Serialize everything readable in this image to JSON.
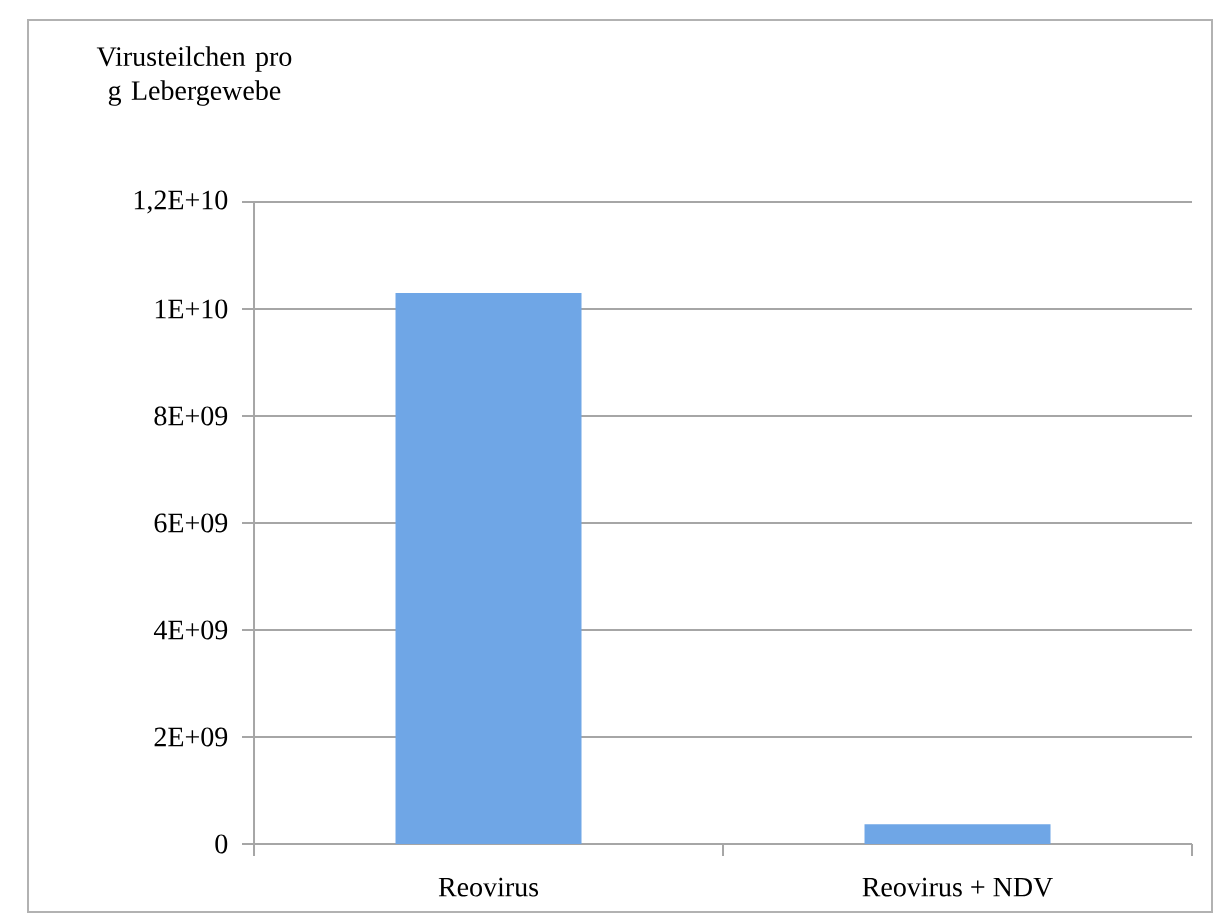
{
  "chart_data": {
    "type": "bar",
    "ylabel": "Virusteilchen pro g Lebergewebe",
    "categories": [
      "Reovirus",
      "Reovirus + NDV"
    ],
    "values": [
      10300000000.0,
      370000000.0
    ],
    "color": "#6fa6e6",
    "ylim": [
      0,
      12000000000.0
    ],
    "yticks": [
      {
        "value": 0,
        "label": "0"
      },
      {
        "value": 2000000000.0,
        "label": "2E+09"
      },
      {
        "value": 4000000000.0,
        "label": "4E+09"
      },
      {
        "value": 6000000000.0,
        "label": "6E+09"
      },
      {
        "value": 8000000000.0,
        "label": "8E+09"
      },
      {
        "value": 10000000000.0,
        "label": "1E+10"
      },
      {
        "value": 12000000000.0,
        "label": "1,2E+10"
      }
    ],
    "grid": "y"
  }
}
